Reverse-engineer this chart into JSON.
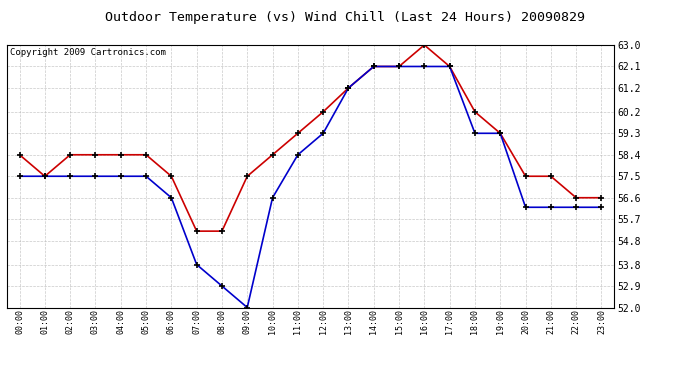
{
  "title": "Outdoor Temperature (vs) Wind Chill (Last 24 Hours) 20090829",
  "copyright": "Copyright 2009 Cartronics.com",
  "hours": [
    "00:00",
    "01:00",
    "02:00",
    "03:00",
    "04:00",
    "05:00",
    "06:00",
    "07:00",
    "08:00",
    "09:00",
    "10:00",
    "11:00",
    "12:00",
    "13:00",
    "14:00",
    "15:00",
    "16:00",
    "17:00",
    "18:00",
    "19:00",
    "20:00",
    "21:00",
    "22:00",
    "23:00"
  ],
  "temp_red": [
    58.4,
    57.5,
    58.4,
    58.4,
    58.4,
    58.4,
    57.5,
    55.2,
    55.2,
    57.5,
    58.4,
    59.3,
    60.2,
    61.2,
    62.1,
    62.1,
    63.0,
    62.1,
    60.2,
    59.3,
    57.5,
    57.5,
    56.6,
    56.6
  ],
  "temp_blue": [
    57.5,
    57.5,
    57.5,
    57.5,
    57.5,
    57.5,
    56.6,
    53.8,
    52.9,
    52.0,
    56.6,
    58.4,
    59.3,
    61.2,
    62.1,
    62.1,
    62.1,
    62.1,
    59.3,
    59.3,
    56.2,
    56.2,
    56.2,
    56.2
  ],
  "ylim": [
    52.0,
    63.0
  ],
  "yticks": [
    52.0,
    52.9,
    53.8,
    54.8,
    55.7,
    56.6,
    57.5,
    58.4,
    59.3,
    60.2,
    61.2,
    62.1,
    63.0
  ],
  "red_color": "#cc0000",
  "blue_color": "#0000cc",
  "bg_color": "#ffffff",
  "grid_color": "#bbbbbb",
  "title_fontsize": 9.5,
  "copyright_fontsize": 6.5
}
